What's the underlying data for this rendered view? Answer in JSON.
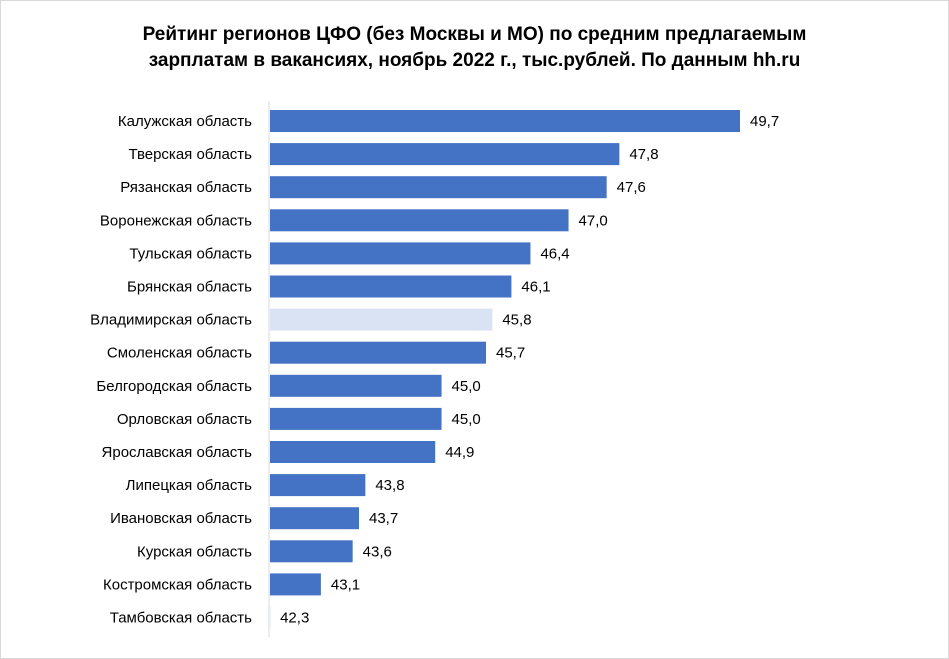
{
  "chart_data": {
    "type": "bar",
    "orientation": "horizontal",
    "title_lines": [
      "Рейтинг регионов ЦФО (без Москвы и МО) по средним предлагаемым",
      "зарплатам в вакансиях, ноябрь 2022 г., тыс.рублей. По данным hh.ru"
    ],
    "categories": [
      "Калужская область",
      "Тверская область",
      "Рязанская область",
      "Воронежская область",
      "Тульская область",
      "Брянская область",
      "Владимирская область",
      "Смоленская область",
      "Белгородская область",
      "Орловская область",
      "Ярославская область",
      "Липецкая область",
      "Ивановская область",
      "Курская область",
      "Костромская область",
      "Тамбовская область"
    ],
    "values": [
      49.7,
      47.8,
      47.6,
      47.0,
      46.4,
      46.1,
      45.8,
      45.7,
      45.0,
      45.0,
      44.9,
      43.8,
      43.7,
      43.6,
      43.1,
      42.3
    ],
    "value_labels": [
      "49,7",
      "47,8",
      "47,6",
      "47,0",
      "46,4",
      "46,1",
      "45,8",
      "45,7",
      "45,0",
      "45,0",
      "44,9",
      "43,8",
      "43,7",
      "43,6",
      "43,1",
      "42,3"
    ],
    "highlight_index": 6,
    "colors": {
      "bar": "#4472c4",
      "highlight": "#dae3f3",
      "axis": "#d9d9d9"
    },
    "grid": false,
    "legend": false
  }
}
